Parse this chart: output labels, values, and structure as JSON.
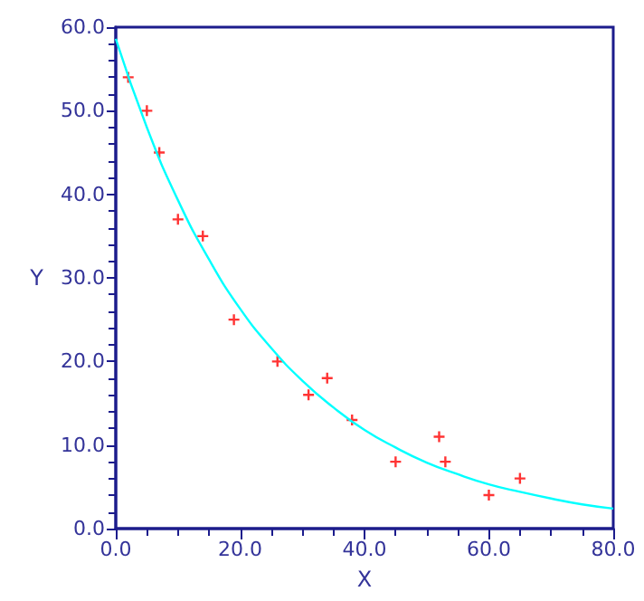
{
  "chart_data": {
    "type": "scatter",
    "xlabel": "X",
    "ylabel": "Y",
    "xlim": [
      0,
      80
    ],
    "ylim": [
      0,
      60
    ],
    "xticks": [
      {
        "value": 0,
        "label": "0.0"
      },
      {
        "value": 20,
        "label": "20.0"
      },
      {
        "value": 40,
        "label": "40.0"
      },
      {
        "value": 60,
        "label": "60.0"
      },
      {
        "value": 80,
        "label": "80.0"
      }
    ],
    "yticks": [
      {
        "value": 0,
        "label": "0.0"
      },
      {
        "value": 10,
        "label": "10.0"
      },
      {
        "value": 20,
        "label": "20.0"
      },
      {
        "value": 30,
        "label": "30.0"
      },
      {
        "value": 40,
        "label": "40.0"
      },
      {
        "value": 50,
        "label": "50.0"
      },
      {
        "value": 60,
        "label": "60.0"
      }
    ],
    "grid": false,
    "series": [
      {
        "color": "#ff0000",
        "marker": "cross",
        "x": [
          2,
          5,
          7,
          10,
          14,
          19,
          26,
          31,
          34,
          38,
          45,
          52,
          53,
          60,
          65
        ],
        "values": [
          54,
          50,
          45,
          37,
          35,
          25,
          20,
          16,
          18,
          13,
          8,
          11,
          8,
          4,
          6
        ]
      },
      {
        "type": "line",
        "color": "#00ffff",
        "marker": "none",
        "line_style": "solid",
        "x": [
          0,
          5,
          10,
          15,
          20,
          25,
          30,
          35,
          40,
          45,
          50,
          55,
          60,
          65,
          70,
          75,
          80
        ],
        "values": [
          58.6,
          48.0,
          39.3,
          32.2,
          26.3,
          21.6,
          17.7,
          14.5,
          11.8,
          9.7,
          7.9,
          6.5,
          5.3,
          4.4,
          3.6,
          2.9,
          2.4
        ]
      }
    ]
  }
}
